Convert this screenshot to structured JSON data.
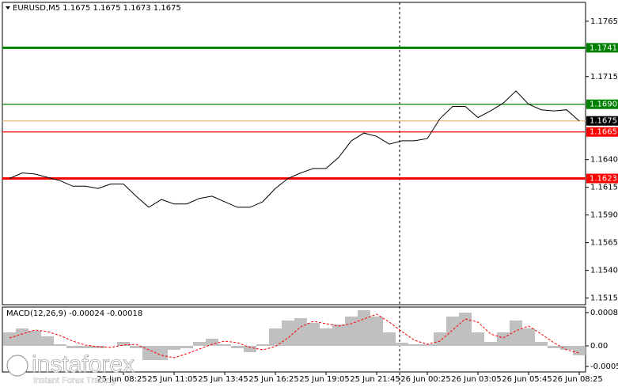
{
  "chart_data": [
    {
      "type": "line",
      "title": "EURUSD,M5  1.1675 1.1675 1.1673 1.1675",
      "categories": [
        null,
        null,
        null,
        null,
        null,
        null,
        null,
        null,
        null,
        "25 Jun 08:25",
        null,
        null,
        null,
        "25 Jun 11:05",
        null,
        null,
        null,
        "25 Jun 13:45",
        null,
        null,
        null,
        "25 Jun 16:25",
        null,
        null,
        null,
        "25 Jun 19:05",
        null,
        null,
        null,
        "25 Jun 21:45",
        null,
        null,
        null,
        "26 Jun 00:25",
        null,
        null,
        null,
        "26 Jun 03:05",
        null,
        null,
        null,
        "26 Jun 05:45",
        null,
        null,
        null,
        "26 Jun 08:25"
      ],
      "values": [
        1.1623,
        1.1628,
        1.1627,
        1.1624,
        1.1621,
        1.1616,
        1.1616,
        1.1614,
        1.1618,
        1.1618,
        1.1607,
        1.1597,
        1.1604,
        1.16,
        1.16,
        1.1605,
        1.1607,
        1.1602,
        1.1597,
        1.1597,
        1.1602,
        1.1614,
        1.1623,
        1.1628,
        1.1632,
        1.1632,
        1.1642,
        1.1657,
        1.1664,
        1.1661,
        1.1654,
        1.1657,
        1.1657,
        1.1659,
        1.1677,
        1.1688,
        1.1688,
        1.1678,
        1.1684,
        1.1691,
        1.1702,
        1.169,
        1.1685,
        1.1684,
        1.1685,
        1.1675
      ],
      "color": "#000000",
      "ylim": [
        1.1509,
        1.1782
      ],
      "yticks": [
        1.1765,
        1.1715,
        {
          "value": 1.164,
          "label": "1.1640"
        },
        1.1615,
        {
          "value": 1.159,
          "label": "1.1590"
        },
        1.1565,
        {
          "value": 1.154,
          "label": "1.1540"
        },
        1.1515
      ],
      "levels": [
        {
          "value": 1.1741,
          "color": "#008000",
          "thick": true
        },
        {
          "value": 1.169,
          "label": "1.1690",
          "color": "#008000",
          "thick": false
        },
        {
          "value": 1.1675,
          "color": "#e8b880",
          "label_color": "#000000",
          "thick": false
        },
        {
          "value": 1.1665,
          "color": "#ff0000",
          "thick": false
        },
        {
          "value": 1.1623,
          "color": "#ff0000",
          "thick": true
        }
      ]
    },
    {
      "type": "macd",
      "title": "MACD(12,26,9) -0.00024 -0.00018",
      "histogram": {
        "color": "#c0c0c0",
        "values": [
          0.00034,
          0.00044,
          0.00038,
          0.00024,
          4e-05,
          -6e-05,
          -6e-05,
          -6e-05,
          0,
          0.0001,
          -6e-05,
          -0.00036,
          -0.00036,
          -0.0001,
          -6e-05,
          0.0001,
          0.00018,
          4e-05,
          -6e-05,
          -0.00016,
          4e-05,
          0.00044,
          0.00064,
          0.0007,
          0.00058,
          0.00044,
          0.00054,
          0.00074,
          0.0009,
          0.00074,
          0.00034,
          8e-05,
          4e-05,
          4e-05,
          0.00034,
          0.00074,
          0.00084,
          0.00034,
          0.0001,
          0.00034,
          0.00064,
          0.00044,
          0.0001,
          -6e-05,
          -0.0001,
          -0.00024
        ]
      },
      "signal": {
        "color": "#ff0000",
        "values": [
          0.0002,
          0.0003,
          0.0004,
          0.00036,
          0.00026,
          0.00012,
          2e-05,
          -2e-05,
          -4e-05,
          2e-05,
          4e-05,
          -0.0001,
          -0.00024,
          -0.0003,
          -0.0002,
          -8e-05,
          4e-05,
          0.00012,
          8e-05,
          -4e-05,
          -0.0001,
          -2e-05,
          0.0002,
          0.00048,
          0.00062,
          0.00056,
          0.0005,
          0.00056,
          0.00068,
          0.0008,
          0.0006,
          0.00036,
          0.00014,
          4e-05,
          0.00012,
          0.0004,
          0.00068,
          0.0006,
          0.0003,
          0.0002,
          0.00038,
          0.0005,
          0.0003,
          8e-05,
          -0.0001,
          -0.00018
        ]
      },
      "ylim": [
        -0.00066,
        0.00098
      ],
      "yticks": [
        0.00084,
        {
          "value": 0,
          "label": "0.00"
        },
        -0.00052
      ]
    }
  ],
  "watermark": {
    "brand": "instaforex",
    "tagline": "Instant Forex Trading"
  }
}
